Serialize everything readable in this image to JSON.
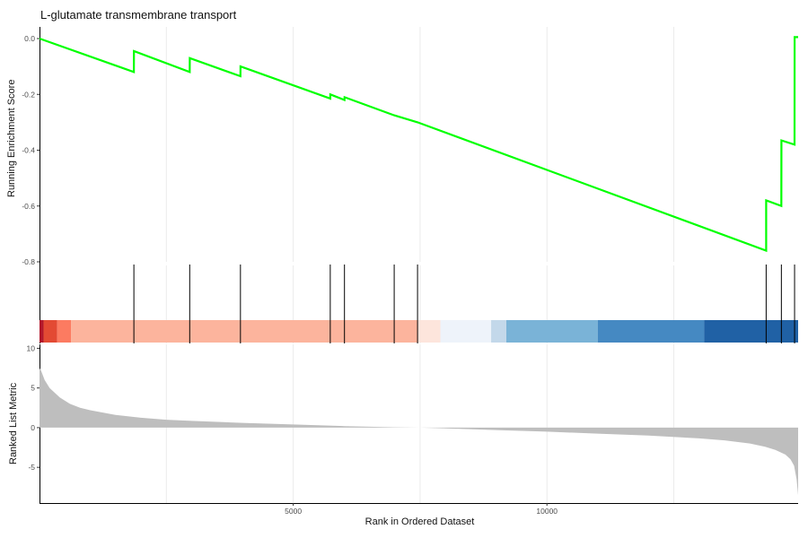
{
  "chart_data": {
    "type": "line",
    "title": "L-glutamate transmembrane transport",
    "xlabel": "Rank in Ordered Dataset",
    "ylabel_top": "Running Enrichment Score",
    "ylabel_bottom": "Ranked List Metric",
    "xlim": [
      0,
      14950
    ],
    "x_ticks": [
      5000,
      10000
    ],
    "x_tick_labels": [
      "5000",
      "10000"
    ],
    "grid": true,
    "running_score": {
      "ylim": [
        -0.8,
        0.0
      ],
      "y_ticks": [
        0.0,
        -0.2,
        -0.4,
        -0.6,
        -0.8
      ],
      "y_tick_labels": [
        "0.0",
        "-0.2",
        "-0.4",
        "-0.6",
        "-0.8"
      ],
      "color": "#00ff00",
      "x": [
        0,
        1860,
        1861,
        2960,
        2961,
        3960,
        3961,
        5730,
        5731,
        6010,
        6011,
        6990,
        7450,
        14320,
        14321,
        14620,
        14621,
        14880,
        14881,
        14950
      ],
      "y": [
        0.0,
        -0.12,
        -0.045,
        -0.12,
        -0.07,
        -0.135,
        -0.1,
        -0.215,
        -0.2,
        -0.22,
        -0.21,
        -0.275,
        -0.3,
        -0.76,
        -0.58,
        -0.6,
        -0.365,
        -0.38,
        0.005,
        0.005
      ]
    },
    "hits": [
      1860,
      2960,
      3960,
      5730,
      6010,
      6990,
      7450,
      14320,
      14620,
      14880
    ],
    "hit_color": "#000000",
    "rank_bands": [
      {
        "start": 0,
        "end": 80,
        "color": "#b2182b"
      },
      {
        "start": 80,
        "end": 350,
        "color": "#e34a33"
      },
      {
        "start": 350,
        "end": 620,
        "color": "#fc7b61"
      },
      {
        "start": 620,
        "end": 7450,
        "color": "#fcb49d"
      },
      {
        "start": 7450,
        "end": 7900,
        "color": "#fde5dc"
      },
      {
        "start": 7900,
        "end": 8900,
        "color": "#eef3fa"
      },
      {
        "start": 8900,
        "end": 9200,
        "color": "#c3d8ea"
      },
      {
        "start": 9200,
        "end": 11000,
        "color": "#7ab3d7"
      },
      {
        "start": 11000,
        "end": 13100,
        "color": "#4589c2"
      },
      {
        "start": 13100,
        "end": 14950,
        "color": "#2061a5"
      }
    ],
    "ranked_metric": {
      "ylim": [
        -9.5,
        10.5
      ],
      "y_ticks": [
        10,
        5,
        0,
        -5
      ],
      "y_tick_labels": [
        "10",
        "5",
        "0",
        "-5"
      ],
      "fill_color": "#bebebe",
      "x": [
        0,
        30,
        100,
        200,
        400,
        600,
        800,
        1000,
        1500,
        2000,
        2500,
        3000,
        4000,
        5000,
        6000,
        7000,
        7500,
        8000,
        9000,
        10000,
        11000,
        12000,
        13000,
        13500,
        14000,
        14300,
        14500,
        14700,
        14800,
        14870,
        14920,
        14950
      ],
      "y": [
        7.5,
        7.2,
        6.0,
        5.0,
        3.8,
        3.0,
        2.5,
        2.2,
        1.6,
        1.25,
        1.0,
        0.85,
        0.6,
        0.4,
        0.2,
        0.05,
        0.0,
        -0.1,
        -0.3,
        -0.5,
        -0.75,
        -1.0,
        -1.35,
        -1.6,
        -2.0,
        -2.4,
        -2.8,
        -3.4,
        -4.0,
        -4.8,
        -6.5,
        -8.5
      ]
    }
  }
}
